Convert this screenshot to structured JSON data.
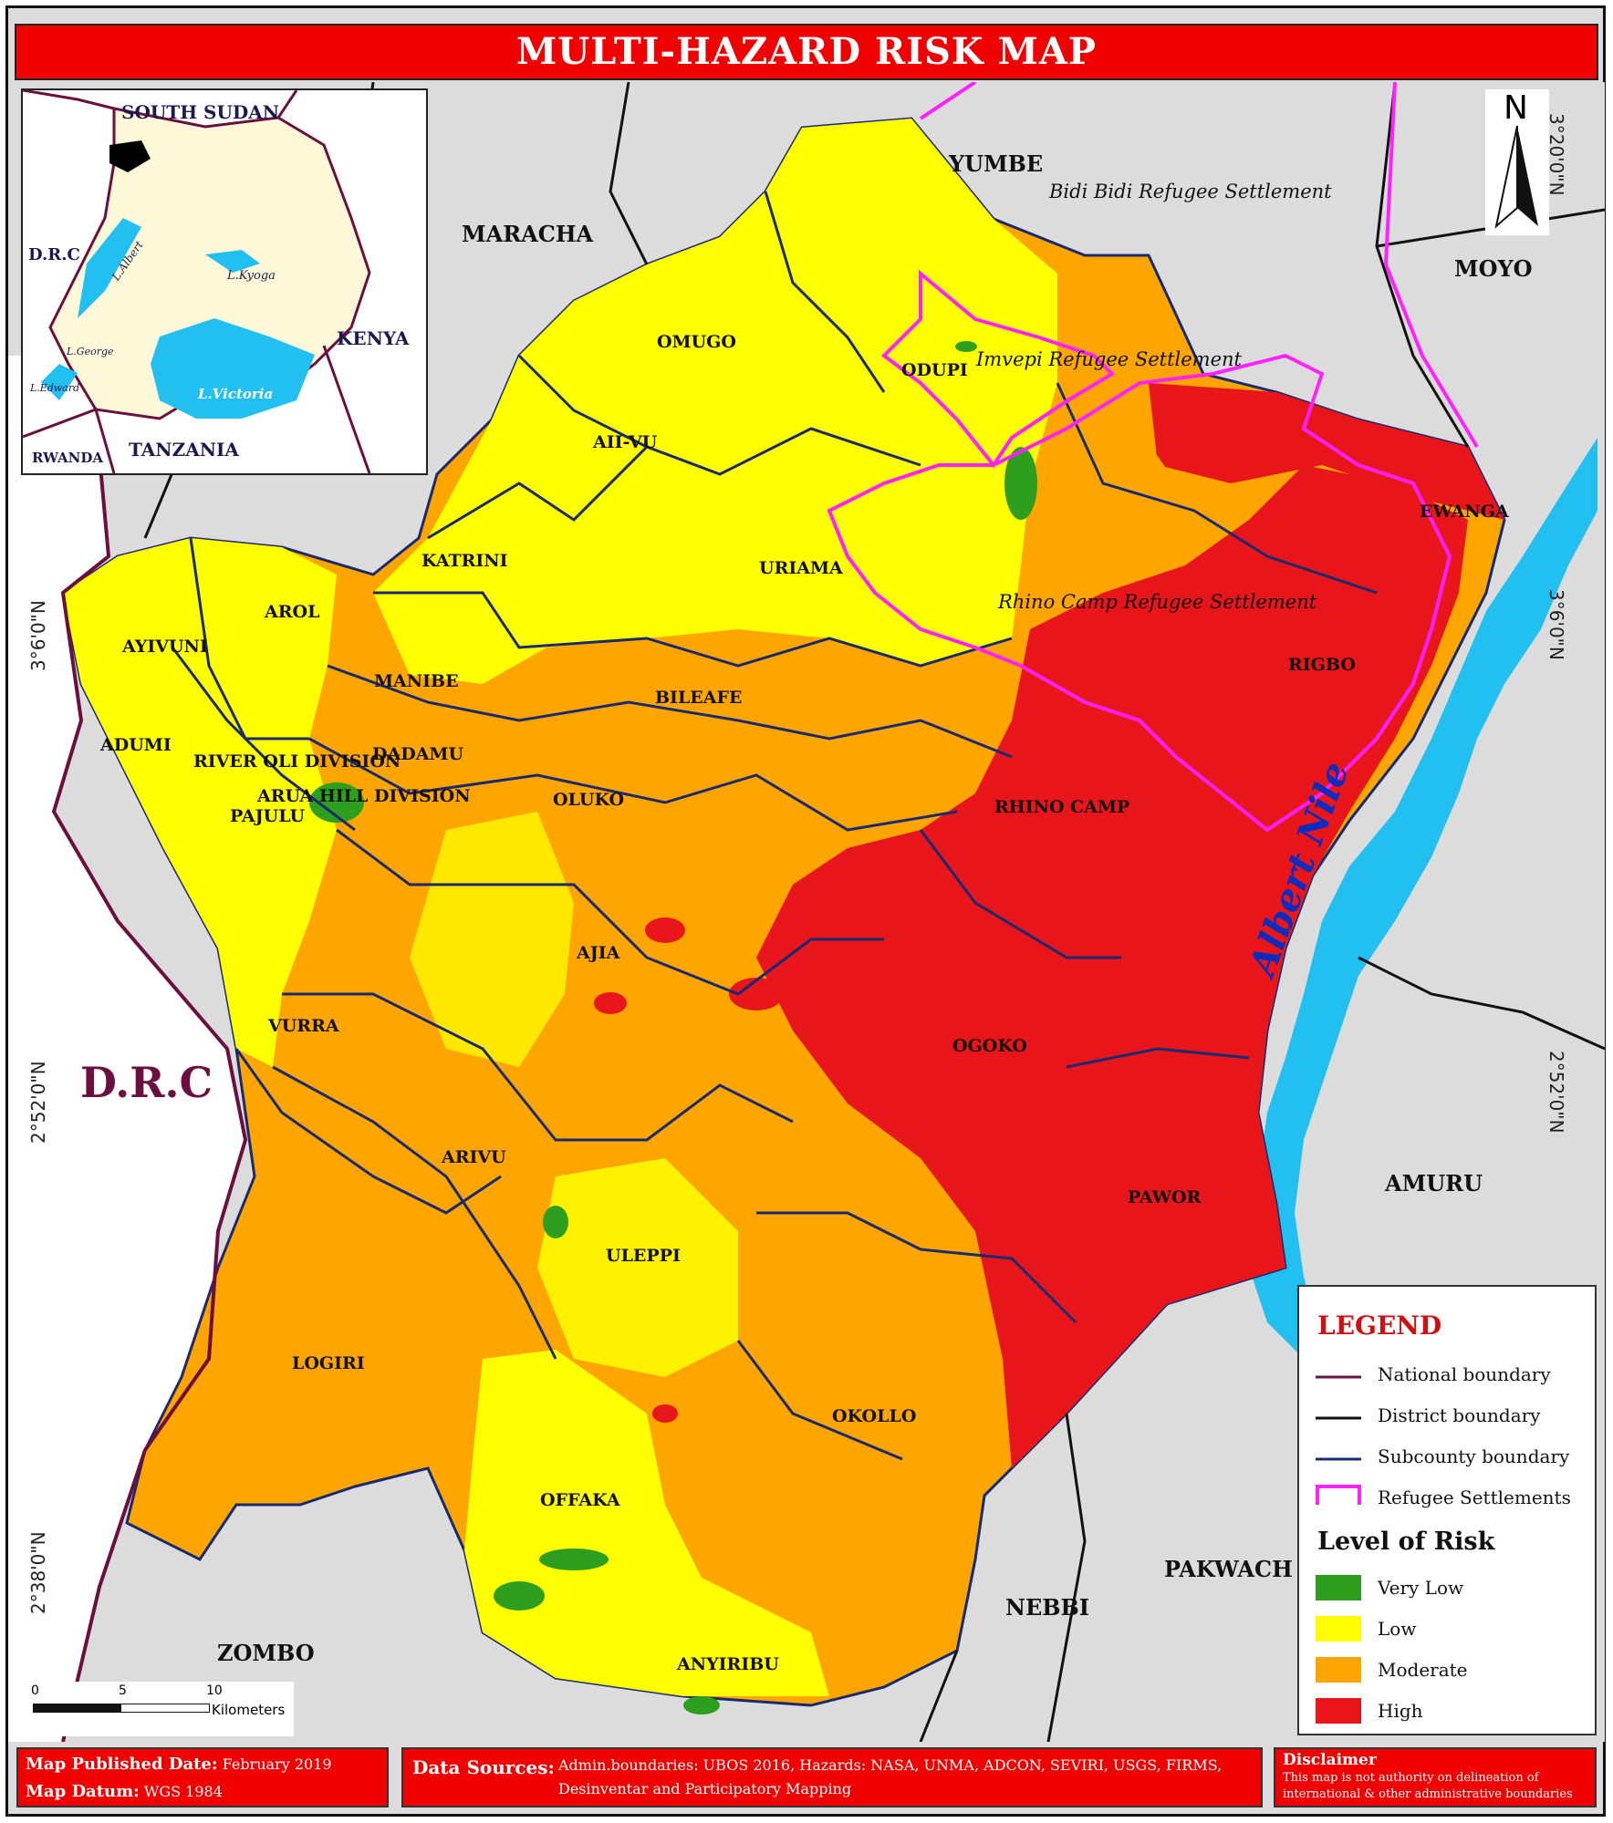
{
  "title": "MULTI-HAZARD RISK MAP",
  "inset": {
    "labels": {
      "south_sudan": "SOUTH SUDAN",
      "drc": "D.R.C",
      "kenya": "KENYA",
      "tanzania": "TANZANIA",
      "rwanda": "RWANDA",
      "l_albert": "L.Albert",
      "l_kyoga": "L.Kyoga",
      "l_george": "L.George",
      "l_edward": "L.Edward",
      "l_victoria": "L.Victoria"
    }
  },
  "districts": {
    "yumbe": "YUMBE",
    "maracha": "MARACHA",
    "moyo": "MOYO",
    "drc": "D.R.C",
    "amuru": "AMURU",
    "zombo": "ZOMBO",
    "nebbi": "NEBBI",
    "pakwach": "PAKWACH"
  },
  "settlements": {
    "bidi_bidi": "Bidi Bidi Refugee Settlement",
    "imvepi": "Imvepi Refugee Settlement",
    "rhino_camp": "Rhino Camp Refugee Settlement"
  },
  "river": "Albert Nile",
  "subcounties": {
    "omugo": "OMUGO",
    "odupi": "ODUPI",
    "aii_vu": "AII-VU",
    "katrini": "KATRINI",
    "uriama": "URIAMA",
    "ewanga": "EWANGA",
    "arol": "AROL",
    "ayivuni": "AYIVUNI",
    "manibe": "MANIBE",
    "bileafe": "BILEAFE",
    "rigbo": "RIGBO",
    "adumi": "ADUMI",
    "river_oli": "RIVER OLI DIVISION",
    "dadamu": "DADAMU",
    "arua_hill": "ARUA HILL DIVISION",
    "pajulu": "PAJULU",
    "oluko": "OLUKO",
    "rhino_camp": "RHINO CAMP",
    "ajia": "AJIA",
    "vurra": "VURRA",
    "ogoko": "OGOKO",
    "arivu": "ARIVU",
    "pawor": "PAWOR",
    "uleppi": "ULEPPI",
    "logiri": "LOGIRI",
    "okollo": "OKOLLO",
    "offaka": "OFFAKA",
    "anyiribu": "ANYIRIBU"
  },
  "coords": {
    "top": "3°20'0\"N",
    "mid_upper": "3°6'0\"N",
    "mid_lower": "2°52'0\"N",
    "bottom": "2°38'0\"N"
  },
  "north_arrow": "N",
  "scale_bar": {
    "ticks": [
      "0",
      "5",
      "10"
    ],
    "unit": "Kilometers"
  },
  "legend": {
    "title": "LEGEND",
    "boundaries": [
      {
        "label": "National boundary",
        "color": "#6b0f40"
      },
      {
        "label": "District boundary",
        "color": "#111111"
      },
      {
        "label": "Subcounty boundary",
        "color": "#1a2a70"
      },
      {
        "label": "Refugee Settlements",
        "color": "#ff22ff"
      }
    ],
    "risk_title": "Level of Risk",
    "risk_levels": [
      {
        "label": "Very Low",
        "color": "#2e9e1e"
      },
      {
        "label": "Low",
        "color": "#ffff00"
      },
      {
        "label": "Moderate",
        "color": "#ffa500"
      },
      {
        "label": "High",
        "color": "#e8151a"
      }
    ]
  },
  "footer": {
    "published_label": "Map Published Date:",
    "published_value": "February 2019",
    "datum_label": "Map Datum:",
    "datum_value": "WGS 1984",
    "sources_label": "Data Sources:",
    "sources_line1": "Admin.boundaries: UBOS 2016, Hazards: NASA, UNMA, ADCON, SEVIRI, USGS, FIRMS,",
    "sources_line2": "Desinventar and Participatory Mapping",
    "disclaimer_label": "Disclaimer",
    "disclaimer_line1": "This map is not authority on delineation of",
    "disclaimer_line2": "international & other administrative boundaries"
  },
  "colors": {
    "title_bar": "#f00000",
    "background": "#dcdcdc",
    "water": "#22c0f0"
  }
}
